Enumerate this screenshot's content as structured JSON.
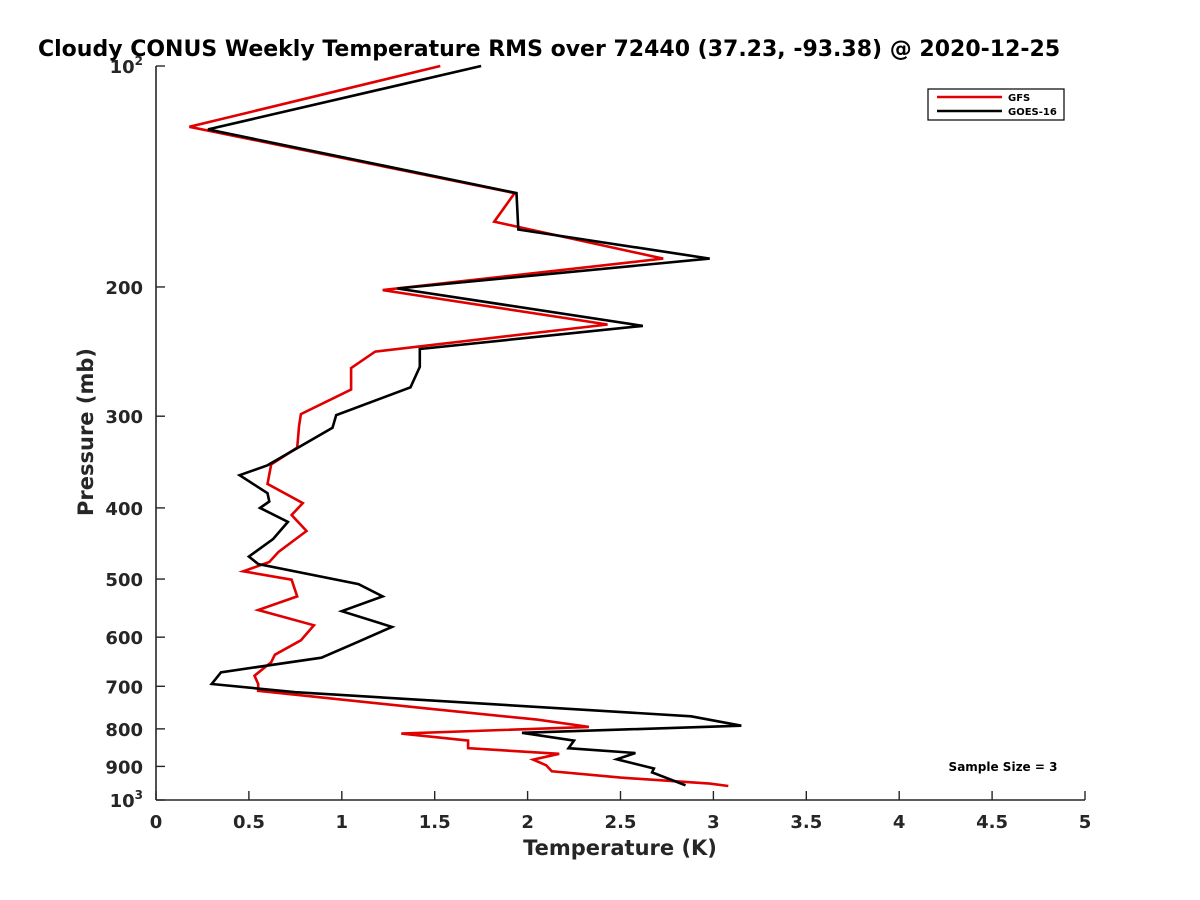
{
  "chart_data": {
    "type": "line",
    "title": "Cloudy CONUS Weekly Temperature RMS over 72440 (37.23, -93.38) @ 2020-12-25",
    "xlabel": "Temperature (K)",
    "ylabel": "Pressure (mb)",
    "xlim": [
      0,
      5
    ],
    "ylim": [
      100,
      1000
    ],
    "y_scale": "log",
    "y_reversed": true,
    "grid": false,
    "legend_position": "top-right",
    "x_ticks": [
      0,
      0.5,
      1,
      1.5,
      2,
      2.5,
      3,
      3.5,
      4,
      4.5,
      5
    ],
    "x_tick_labels": [
      "0",
      "0.5",
      "1",
      "1.5",
      "2",
      "2.5",
      "3",
      "3.5",
      "4",
      "4.5",
      "5"
    ],
    "y_ticks": [
      {
        "value": 100,
        "base": "10",
        "exp": "2"
      },
      {
        "value": 200,
        "label": "200"
      },
      {
        "value": 300,
        "label": "300"
      },
      {
        "value": 400,
        "label": "400"
      },
      {
        "value": 500,
        "label": "500"
      },
      {
        "value": 600,
        "label": "600"
      },
      {
        "value": 700,
        "label": "700"
      },
      {
        "value": 800,
        "label": "800"
      },
      {
        "value": 900,
        "label": "900"
      },
      {
        "value": 1000,
        "base": "10",
        "exp": "3"
      }
    ],
    "annotation": "Sample Size = 3",
    "series": [
      {
        "name": "GFS",
        "color": "#e00000",
        "points": [
          [
            1.53,
            100
          ],
          [
            0.18,
            121
          ],
          [
            1.93,
            149
          ],
          [
            1.82,
            163
          ],
          [
            2.73,
            183
          ],
          [
            1.22,
            202
          ],
          [
            2.43,
            225
          ],
          [
            1.18,
            245
          ],
          [
            1.05,
            258
          ],
          [
            1.05,
            276
          ],
          [
            0.78,
            298
          ],
          [
            0.77,
            309
          ],
          [
            0.76,
            331
          ],
          [
            0.62,
            349
          ],
          [
            0.6,
            371
          ],
          [
            0.79,
            394
          ],
          [
            0.73,
            409
          ],
          [
            0.81,
            430
          ],
          [
            0.66,
            459
          ],
          [
            0.61,
            474
          ],
          [
            0.47,
            488
          ],
          [
            0.73,
            501
          ],
          [
            0.76,
            528
          ],
          [
            0.55,
            551
          ],
          [
            0.85,
            578
          ],
          [
            0.78,
            606
          ],
          [
            0.64,
            634
          ],
          [
            0.62,
            649
          ],
          [
            0.53,
            677
          ],
          [
            0.55,
            695
          ],
          [
            0.55,
            710
          ],
          [
            1.45,
            750
          ],
          [
            2.05,
            777
          ],
          [
            2.33,
            795
          ],
          [
            1.32,
            812
          ],
          [
            1.68,
            830
          ],
          [
            1.68,
            850
          ],
          [
            2.17,
            865
          ],
          [
            2.03,
            881
          ],
          [
            2.1,
            897
          ],
          [
            2.13,
            914
          ],
          [
            2.5,
            932
          ],
          [
            2.98,
            950
          ],
          [
            3.08,
            957
          ]
        ]
      },
      {
        "name": "GOES-16",
        "color": "#000000",
        "points": [
          [
            1.75,
            100
          ],
          [
            0.28,
            122
          ],
          [
            1.94,
            149
          ],
          [
            1.95,
            167
          ],
          [
            2.98,
            183
          ],
          [
            1.3,
            201
          ],
          [
            2.62,
            226
          ],
          [
            1.42,
            243
          ],
          [
            1.42,
            257
          ],
          [
            1.37,
            274
          ],
          [
            0.97,
            299
          ],
          [
            0.95,
            311
          ],
          [
            0.6,
            350
          ],
          [
            0.45,
            361
          ],
          [
            0.6,
            382
          ],
          [
            0.61,
            392
          ],
          [
            0.56,
            400
          ],
          [
            0.71,
            418
          ],
          [
            0.63,
            441
          ],
          [
            0.5,
            466
          ],
          [
            0.55,
            477
          ],
          [
            1.09,
            508
          ],
          [
            1.22,
            528
          ],
          [
            1.0,
            553
          ],
          [
            1.27,
            581
          ],
          [
            1.08,
            610
          ],
          [
            0.89,
            640
          ],
          [
            0.35,
            670
          ],
          [
            0.3,
            695
          ],
          [
            0.75,
            713
          ],
          [
            2.88,
            769
          ],
          [
            3.15,
            792
          ],
          [
            1.97,
            810
          ],
          [
            2.25,
            830
          ],
          [
            2.22,
            850
          ],
          [
            2.58,
            863
          ],
          [
            2.48,
            880
          ],
          [
            2.68,
            906
          ],
          [
            2.67,
            917
          ],
          [
            2.85,
            955
          ]
        ]
      }
    ]
  }
}
